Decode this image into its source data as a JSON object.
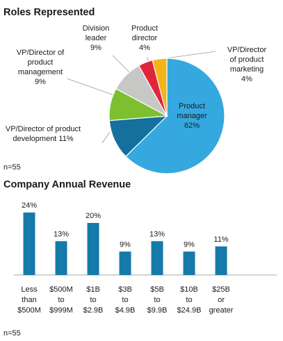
{
  "colors": {
    "product_manager": "#35a8e0",
    "dev": "#15709e",
    "pm": "#7cbf2f",
    "division_leader": "#c7c8c6",
    "product_director": "#e0243c",
    "marketing": "#f5b418",
    "bar": "#157aa8",
    "leader_line": "#999999",
    "axis": "#555555"
  },
  "chart_data": [
    {
      "type": "pie",
      "title": "Roles Represented",
      "note": "n=55",
      "slices": [
        {
          "name": "Product manager",
          "label_lines": [
            "Product",
            "manager"
          ],
          "value_label": "62%",
          "value": 62,
          "color_key": "product_manager"
        },
        {
          "name": "VP/Director of product development",
          "label_lines": [
            "VP/Director of  product",
            "development 11%"
          ],
          "value_label": "",
          "value": 11,
          "color_key": "dev"
        },
        {
          "name": "VP/Director of product management",
          "label_lines": [
            "VP/Director of",
            "product",
            "management",
            "9%"
          ],
          "value_label": "",
          "value": 9,
          "color_key": "pm"
        },
        {
          "name": "Division leader",
          "label_lines": [
            "Division",
            "leader",
            "9%"
          ],
          "value_label": "",
          "value": 9,
          "color_key": "division_leader"
        },
        {
          "name": "Product director",
          "label_lines": [
            "Product",
            "director",
            "4%"
          ],
          "value_label": "",
          "value": 4,
          "color_key": "product_director"
        },
        {
          "name": "VP/Director of product marketing",
          "label_lines": [
            "VP/Director",
            "of product",
            "marketing",
            "4%"
          ],
          "value_label": "",
          "value": 4,
          "color_key": "marketing"
        }
      ]
    },
    {
      "type": "bar",
      "title": "Company Annual Revenue",
      "note": "n=55",
      "categories": [
        [
          "Less",
          "than",
          "$500M"
        ],
        [
          "$500M",
          "to",
          "$999M"
        ],
        [
          "$1B",
          "to",
          "$2.9B"
        ],
        [
          "$3B",
          "to",
          "$4.9B"
        ],
        [
          "$5B",
          "to",
          "$9.9B"
        ],
        [
          "$10B",
          "to",
          "$24.9B"
        ],
        [
          "$25B",
          "or",
          "greater"
        ]
      ],
      "values": [
        24,
        13,
        20,
        9,
        13,
        9,
        11
      ],
      "value_labels": [
        "24%",
        "13%",
        "20%",
        "9%",
        "13%",
        "9%",
        "11%"
      ],
      "ylim": [
        0,
        24
      ]
    }
  ]
}
